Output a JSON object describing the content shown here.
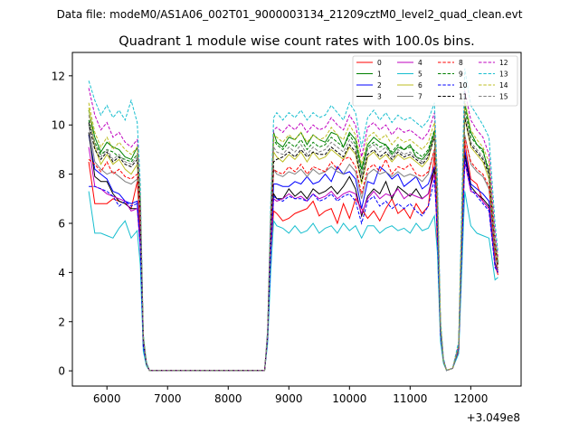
{
  "header": {
    "data_file": "Data file: modeM0/AS1A06_002T01_9000003134_21209cztM0_level2_quad_clean.evt"
  },
  "chart_data": {
    "type": "line",
    "title": "Quadrant 1 module wise count rates with 100.0s bins.",
    "xlabel": "",
    "ylabel": "",
    "x_offset_label": "+3.049e8",
    "xlim": [
      5430,
      12830
    ],
    "ylim": [
      -0.62,
      12.95
    ],
    "xticks": [
      6000,
      7000,
      8000,
      9000,
      10000,
      11000,
      12000
    ],
    "xtick_labels": [
      "6000",
      "7000",
      "8000",
      "9000",
      "10000",
      "11000",
      "12000"
    ],
    "yticks": [
      0,
      2,
      4,
      6,
      8,
      10,
      12
    ],
    "ytick_labels": [
      "0",
      "2",
      "4",
      "6",
      "8",
      "10",
      "12"
    ],
    "grid": false,
    "legend_position": "top-right",
    "x": [
      5700,
      5800,
      5900,
      6000,
      6100,
      6200,
      6300,
      6400,
      6500,
      6550,
      6600,
      6650,
      6700,
      8600,
      8650,
      8700,
      8750,
      8800,
      8900,
      9000,
      9100,
      9200,
      9300,
      9400,
      9500,
      9600,
      9700,
      9800,
      9900,
      10000,
      10100,
      10200,
      10300,
      10400,
      10500,
      10600,
      10700,
      10800,
      10900,
      11000,
      11100,
      11200,
      11300,
      11400,
      11450,
      11500,
      11550,
      11600,
      11700,
      11800,
      11900,
      12000,
      12100,
      12200,
      12300,
      12400,
      12450
    ],
    "series": [
      {
        "name": "0",
        "color": "#ff0000",
        "dash": "solid",
        "values": [
          8.5,
          6.8,
          6.8,
          6.8,
          7.0,
          6.9,
          6.8,
          6.6,
          7.7,
          5.5,
          1.0,
          0.3,
          0.02,
          0.02,
          1.3,
          4.8,
          6.5,
          6.4,
          6.1,
          6.2,
          6.4,
          6.5,
          6.6,
          6.9,
          6.3,
          6.5,
          6.6,
          6.0,
          6.8,
          6.2,
          7.0,
          6.6,
          6.2,
          6.5,
          6.1,
          6.6,
          7.0,
          6.4,
          6.6,
          6.2,
          6.8,
          6.4,
          6.7,
          8.8,
          5.0,
          1.5,
          0.4,
          0.02,
          0.1,
          0.8,
          9.3,
          7.8,
          7.6,
          6.9,
          6.6,
          4.3,
          3.9
        ]
      },
      {
        "name": "1",
        "color": "#008000",
        "dash": "solid",
        "values": [
          10.6,
          9.5,
          8.9,
          9.3,
          9.1,
          9.0,
          8.7,
          8.6,
          9.1,
          6.9,
          1.4,
          0.3,
          0.02,
          0.02,
          1.5,
          6.2,
          9.7,
          9.3,
          9.1,
          9.5,
          9.4,
          9.7,
          9.2,
          9.6,
          9.4,
          9.3,
          9.7,
          9.6,
          9.1,
          9.7,
          9.4,
          8.2,
          9.2,
          9.5,
          9.3,
          9.2,
          8.8,
          9.1,
          9.0,
          9.2,
          8.7,
          8.6,
          8.9,
          9.7,
          7.0,
          1.9,
          0.4,
          0.02,
          0.1,
          1.0,
          10.9,
          9.7,
          9.2,
          9.0,
          8.0,
          5.2,
          4.4
        ]
      },
      {
        "name": "2",
        "color": "#0000ff",
        "dash": "solid",
        "values": [
          9.6,
          8.2,
          8.0,
          7.8,
          7.3,
          7.2,
          6.9,
          6.8,
          6.9,
          5.2,
          1.1,
          0.3,
          0.02,
          0.02,
          1.4,
          5.0,
          7.6,
          7.6,
          7.5,
          7.5,
          7.7,
          7.6,
          7.9,
          7.6,
          7.7,
          8.0,
          7.7,
          8.3,
          8.0,
          8.1,
          7.8,
          6.6,
          7.7,
          7.6,
          8.3,
          8.1,
          7.8,
          8.0,
          7.5,
          7.7,
          7.9,
          7.4,
          7.6,
          8.3,
          6.0,
          1.6,
          0.4,
          0.02,
          0.1,
          0.9,
          9.0,
          7.6,
          7.4,
          7.2,
          6.9,
          4.3,
          4.1
        ]
      },
      {
        "name": "3",
        "color": "#000000",
        "dash": "solid",
        "values": [
          9.7,
          7.9,
          7.7,
          7.7,
          7.2,
          6.9,
          6.8,
          6.6,
          6.6,
          5.2,
          1.0,
          0.3,
          0.02,
          0.02,
          1.3,
          4.9,
          7.2,
          7.0,
          7.0,
          7.4,
          7.1,
          7.3,
          7.0,
          7.4,
          7.2,
          7.3,
          7.5,
          7.2,
          7.5,
          7.9,
          7.4,
          6.3,
          7.1,
          7.4,
          7.2,
          7.7,
          7.0,
          7.5,
          7.3,
          7.1,
          7.4,
          7.0,
          7.2,
          8.2,
          5.8,
          1.5,
          0.4,
          0.02,
          0.1,
          0.9,
          8.8,
          7.5,
          7.2,
          7.0,
          6.7,
          4.4,
          4.0
        ]
      },
      {
        "name": "4",
        "color": "#bf00bf",
        "dash": "solid",
        "values": [
          9.1,
          7.5,
          7.4,
          7.2,
          7.1,
          7.0,
          6.9,
          6.5,
          6.6,
          5.0,
          1.0,
          0.3,
          0.02,
          0.02,
          1.3,
          4.8,
          7.0,
          6.9,
          7.0,
          7.2,
          7.0,
          7.1,
          6.9,
          7.2,
          7.0,
          7.1,
          7.3,
          7.0,
          7.2,
          7.3,
          7.2,
          6.4,
          7.0,
          7.3,
          7.0,
          7.2,
          7.1,
          7.4,
          7.0,
          7.2,
          7.1,
          7.0,
          7.2,
          8.0,
          5.7,
          1.5,
          0.4,
          0.02,
          0.1,
          0.9,
          8.5,
          7.3,
          7.2,
          6.9,
          6.6,
          4.3,
          4.0
        ]
      },
      {
        "name": "5",
        "color": "#17becf",
        "dash": "solid",
        "values": [
          7.3,
          5.6,
          5.6,
          5.5,
          5.4,
          5.8,
          6.1,
          5.4,
          5.7,
          4.3,
          0.8,
          0.2,
          0.02,
          0.02,
          1.1,
          4.0,
          6.1,
          5.9,
          5.8,
          5.6,
          5.9,
          5.6,
          5.7,
          6.0,
          5.6,
          5.8,
          5.9,
          5.6,
          6.0,
          5.7,
          5.9,
          5.4,
          5.9,
          5.9,
          5.6,
          5.8,
          5.9,
          5.7,
          5.8,
          5.6,
          6.0,
          5.7,
          5.8,
          6.3,
          4.8,
          1.2,
          0.3,
          0.02,
          0.1,
          0.7,
          7.3,
          5.9,
          5.6,
          5.5,
          5.4,
          3.7,
          3.8
        ]
      },
      {
        "name": "6",
        "color": "#bcbd22",
        "dash": "solid",
        "values": [
          10.7,
          9.1,
          8.4,
          8.8,
          8.4,
          8.6,
          8.2,
          8.0,
          8.4,
          6.4,
          1.3,
          0.3,
          0.02,
          0.02,
          1.5,
          5.8,
          8.9,
          8.7,
          8.5,
          8.8,
          8.6,
          8.9,
          8.5,
          8.9,
          8.6,
          8.7,
          9.0,
          8.8,
          8.6,
          9.1,
          8.8,
          7.6,
          8.7,
          8.9,
          8.6,
          8.8,
          8.5,
          8.8,
          8.6,
          8.7,
          8.5,
          8.3,
          8.6,
          9.6,
          6.8,
          1.8,
          0.4,
          0.02,
          0.1,
          1.0,
          10.3,
          9.1,
          8.8,
          8.5,
          7.8,
          5.0,
          4.3
        ]
      },
      {
        "name": "7",
        "color": "#808080",
        "dash": "solid",
        "values": [
          10.0,
          8.5,
          8.2,
          8.0,
          8.1,
          7.9,
          7.7,
          7.6,
          7.8,
          6.0,
          1.2,
          0.3,
          0.02,
          0.02,
          1.4,
          5.5,
          8.2,
          8.0,
          7.9,
          8.1,
          8.0,
          8.2,
          7.9,
          8.2,
          8.0,
          8.1,
          8.3,
          8.1,
          8.0,
          8.4,
          8.1,
          7.0,
          8.0,
          8.2,
          8.0,
          8.1,
          7.9,
          8.1,
          7.9,
          8.0,
          7.9,
          7.7,
          8.0,
          9.0,
          6.3,
          1.7,
          0.4,
          0.02,
          0.1,
          0.9,
          9.6,
          8.4,
          8.1,
          7.9,
          7.4,
          4.7,
          4.1
        ]
      },
      {
        "name": "8",
        "color": "#ff0000",
        "dash": "dashed",
        "values": [
          8.6,
          8.4,
          8.1,
          8.5,
          8.0,
          8.2,
          7.9,
          7.8,
          8.0,
          6.1,
          1.2,
          0.3,
          0.02,
          0.02,
          1.4,
          5.6,
          8.2,
          8.1,
          8.0,
          8.3,
          8.1,
          8.4,
          8.0,
          8.3,
          8.2,
          8.1,
          8.5,
          8.2,
          8.6,
          8.7,
          8.3,
          7.2,
          8.2,
          8.4,
          8.1,
          8.6,
          8.0,
          8.3,
          8.2,
          8.4,
          8.0,
          7.9,
          8.1,
          9.0,
          6.4,
          1.7,
          0.4,
          0.02,
          0.1,
          0.9,
          9.5,
          8.5,
          8.2,
          8.0,
          7.5,
          4.8,
          4.2
        ]
      },
      {
        "name": "9",
        "color": "#008000",
        "dash": "dashed",
        "values": [
          10.2,
          9.3,
          8.8,
          9.0,
          8.9,
          8.7,
          8.6,
          8.5,
          8.8,
          6.7,
          1.3,
          0.3,
          0.02,
          0.02,
          1.5,
          6.0,
          9.4,
          9.2,
          9.0,
          9.3,
          9.1,
          9.4,
          9.0,
          9.3,
          9.1,
          9.2,
          9.5,
          9.3,
          9.1,
          9.6,
          9.2,
          8.0,
          9.1,
          9.3,
          9.1,
          9.2,
          8.9,
          9.2,
          9.0,
          9.1,
          8.9,
          8.7,
          9.0,
          9.8,
          7.0,
          1.9,
          0.4,
          0.02,
          0.1,
          1.0,
          10.7,
          9.5,
          9.2,
          8.9,
          8.2,
          5.2,
          4.4
        ]
      },
      {
        "name": "10",
        "color": "#0000ff",
        "dash": "dashed",
        "values": [
          7.5,
          7.5,
          7.4,
          7.3,
          7.1,
          6.7,
          6.9,
          6.7,
          6.8,
          5.1,
          1.0,
          0.3,
          0.02,
          0.02,
          1.3,
          4.8,
          7.1,
          7.0,
          6.9,
          7.1,
          7.0,
          7.0,
          6.9,
          7.2,
          6.9,
          7.0,
          7.2,
          6.9,
          7.1,
          7.2,
          6.9,
          6.0,
          6.9,
          7.1,
          6.7,
          6.9,
          6.6,
          6.8,
          6.6,
          6.8,
          6.5,
          6.3,
          6.7,
          7.8,
          5.6,
          1.5,
          0.4,
          0.02,
          0.1,
          0.9,
          8.6,
          7.4,
          7.1,
          6.8,
          6.5,
          4.2,
          4.0
        ]
      },
      {
        "name": "11",
        "color": "#000000",
        "dash": "dashed",
        "values": [
          10.1,
          9.0,
          8.6,
          8.9,
          8.5,
          8.7,
          8.4,
          8.3,
          8.6,
          6.5,
          1.3,
          0.3,
          0.02,
          0.02,
          1.5,
          5.9,
          8.5,
          8.6,
          8.7,
          8.9,
          8.7,
          9.0,
          8.7,
          8.9,
          8.8,
          8.8,
          9.1,
          8.9,
          8.7,
          9.2,
          8.9,
          7.7,
          8.8,
          9.0,
          8.7,
          8.9,
          8.6,
          8.9,
          8.7,
          8.8,
          8.6,
          8.4,
          8.7,
          9.5,
          6.8,
          1.8,
          0.4,
          0.02,
          0.1,
          1.0,
          10.3,
          9.2,
          8.9,
          8.6,
          8.0,
          5.1,
          4.3
        ]
      },
      {
        "name": "12",
        "color": "#bf00bf",
        "dash": "dashed",
        "values": [
          11.5,
          10.4,
          9.8,
          10.1,
          9.5,
          9.7,
          9.3,
          9.1,
          9.4,
          7.1,
          1.4,
          0.3,
          0.02,
          0.02,
          1.6,
          6.4,
          9.8,
          9.9,
          9.7,
          10.0,
          9.8,
          10.1,
          9.7,
          10.0,
          9.8,
          9.9,
          10.3,
          10.0,
          9.8,
          10.4,
          10.0,
          8.7,
          9.9,
          10.1,
          9.8,
          10.0,
          9.6,
          9.9,
          9.7,
          9.8,
          9.6,
          9.4,
          9.7,
          10.5,
          7.5,
          2.0,
          0.5,
          0.02,
          0.1,
          1.1,
          11.4,
          10.2,
          9.8,
          9.5,
          8.8,
          5.6,
          4.6
        ]
      },
      {
        "name": "13",
        "color": "#17becf",
        "dash": "dashed",
        "values": [
          11.8,
          11.0,
          10.4,
          10.8,
          10.3,
          10.6,
          10.2,
          11.0,
          10.1,
          7.6,
          1.5,
          0.4,
          0.02,
          0.02,
          1.7,
          6.8,
          10.3,
          10.5,
          10.2,
          10.5,
          10.3,
          10.6,
          10.2,
          10.5,
          10.3,
          10.4,
          10.8,
          10.5,
          10.2,
          10.9,
          10.5,
          9.1,
          10.3,
          10.6,
          10.2,
          10.5,
          10.1,
          10.4,
          10.2,
          10.3,
          10.1,
          9.9,
          10.2,
          10.9,
          7.8,
          2.1,
          0.5,
          0.02,
          0.1,
          1.2,
          12.3,
          10.8,
          10.4,
          10.0,
          9.5,
          6.0,
          4.8
        ]
      },
      {
        "name": "14",
        "color": "#bcbd22",
        "dash": "dashed",
        "values": [
          10.9,
          9.7,
          9.1,
          9.5,
          9.0,
          9.3,
          9.0,
          8.8,
          9.1,
          6.9,
          1.4,
          0.3,
          0.02,
          0.02,
          1.5,
          6.2,
          9.6,
          9.5,
          9.3,
          9.6,
          9.4,
          9.7,
          9.3,
          9.6,
          9.4,
          9.5,
          9.9,
          9.6,
          9.4,
          10.0,
          9.6,
          8.4,
          9.5,
          9.7,
          9.4,
          9.6,
          9.2,
          9.5,
          9.3,
          9.4,
          9.2,
          9.0,
          9.3,
          10.1,
          7.2,
          1.9,
          0.4,
          0.02,
          0.1,
          1.0,
          11.0,
          9.8,
          9.4,
          9.1,
          8.5,
          5.3,
          4.5
        ]
      },
      {
        "name": "15",
        "color": "#808080",
        "dash": "dashed",
        "values": [
          10.4,
          9.2,
          8.7,
          9.0,
          8.6,
          8.8,
          8.5,
          8.4,
          8.7,
          6.6,
          1.3,
          0.3,
          0.02,
          0.02,
          1.5,
          6.0,
          9.1,
          8.9,
          8.8,
          9.1,
          8.9,
          9.2,
          8.8,
          9.1,
          8.9,
          9.0,
          9.3,
          9.1,
          8.9,
          9.4,
          9.1,
          7.9,
          9.0,
          9.2,
          8.9,
          9.1,
          8.7,
          9.0,
          8.8,
          8.9,
          8.7,
          8.5,
          8.8,
          9.6,
          6.9,
          1.8,
          0.4,
          0.02,
          0.1,
          1.0,
          10.5,
          9.3,
          9.0,
          8.7,
          8.1,
          5.1,
          4.3
        ]
      }
    ]
  }
}
